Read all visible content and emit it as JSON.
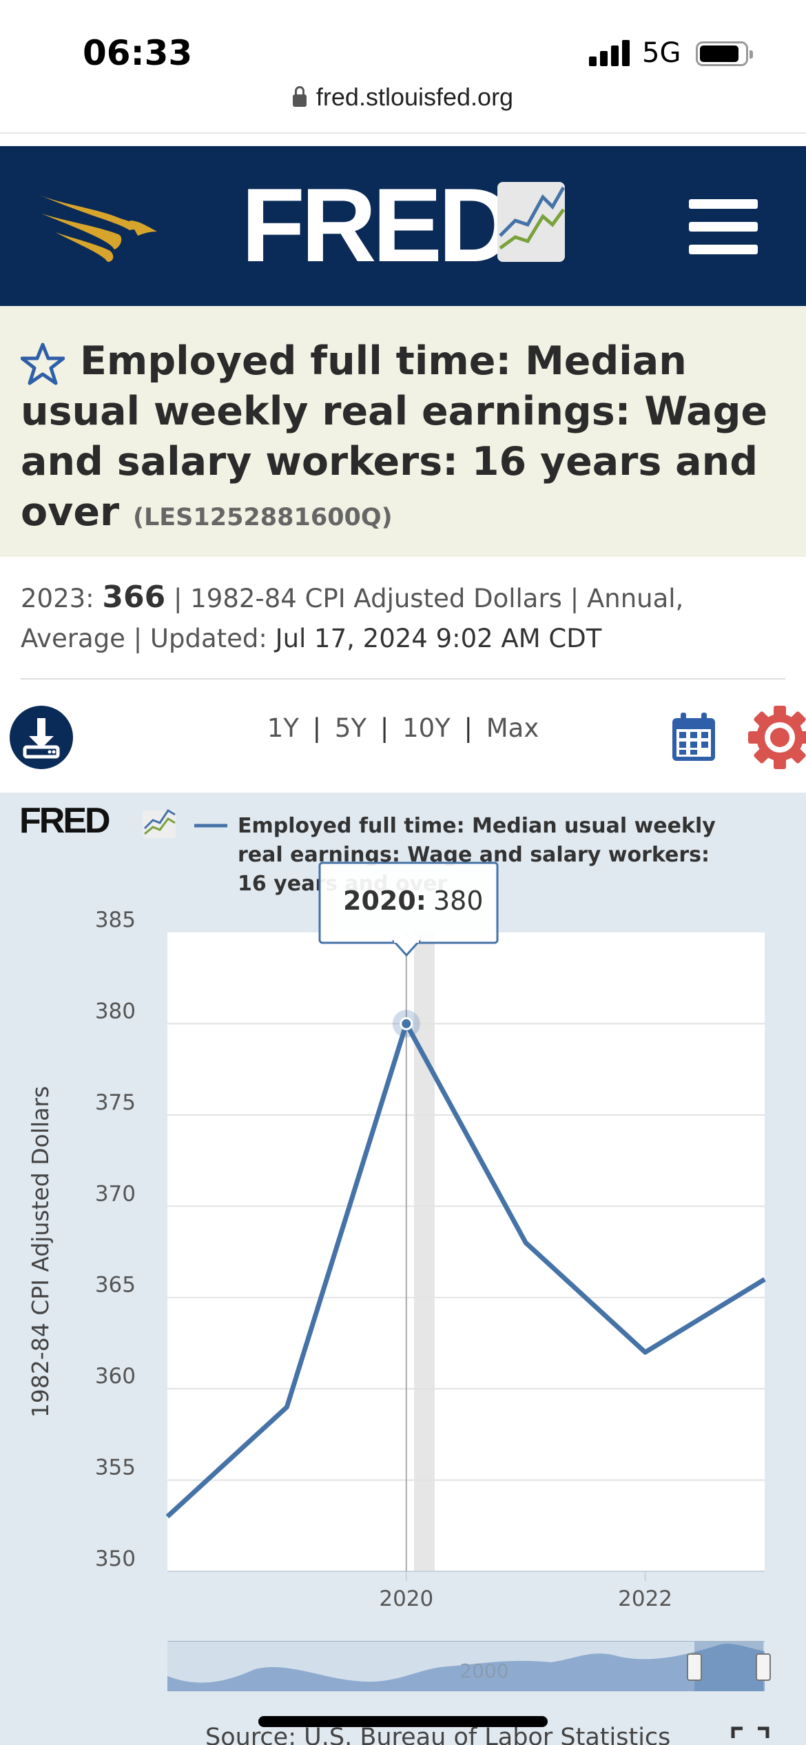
{
  "status_bar": {
    "time": "06:33",
    "network": "5G",
    "url": "fred.stlouisfed.org",
    "icons": [
      "signal-icon",
      "battery-icon",
      "lock-icon"
    ]
  },
  "header": {
    "logo_text": "FRED",
    "icons": [
      "eagle-logo-icon",
      "fred-chart-icon",
      "hamburger-menu-icon"
    ],
    "colors": {
      "background": "#0a2a57",
      "eagle": "#d8a52c"
    }
  },
  "series": {
    "title": "Employed full time: Median usual weekly real earnings: Wage and salary workers: 16 years and over",
    "id": "(LES1252881600Q)",
    "latest_label": "2023:",
    "latest_value": "366",
    "units": "| 1982-84 CPI Adjusted Dollars | Annual,",
    "frequency_line": "Average | Updated:",
    "updated": "Jul 17, 2024 9:02 AM CDT",
    "title_background": "#f1f2e3"
  },
  "toolbar": {
    "ranges": [
      "1Y",
      "5Y",
      "10Y",
      "Max"
    ],
    "separator": "|",
    "icons": [
      "download-icon",
      "calendar-icon",
      "gear-icon"
    ],
    "gear_color": "#d9534f"
  },
  "chart_data": {
    "type": "line",
    "legend": {
      "fred_label": "FRED",
      "line1": "Employed full time: Median usual weekly",
      "line2": "real earnings: Wage and salary workers:",
      "line3": "16 years and over"
    },
    "ylabel": "1982-84 CPI Adjusted Dollars",
    "ylim": [
      350,
      385
    ],
    "yticks": [
      "385",
      "380",
      "375",
      "370",
      "365",
      "360",
      "355",
      "350"
    ],
    "xticks": [
      "2020",
      "2022"
    ],
    "series": [
      {
        "x": [
          2018,
          2019,
          2020,
          2021,
          2022,
          2023
        ],
        "values": [
          353,
          359,
          380,
          368,
          362,
          366
        ]
      }
    ],
    "tooltip": {
      "label": "2020:",
      "value": "380"
    },
    "navigator": {
      "label": "2000"
    },
    "line_color": "#4572a7",
    "background": "#e1e9f0",
    "grid": true
  },
  "footer": {
    "source": "Source: U.S. Bureau of Labor Statistics"
  }
}
